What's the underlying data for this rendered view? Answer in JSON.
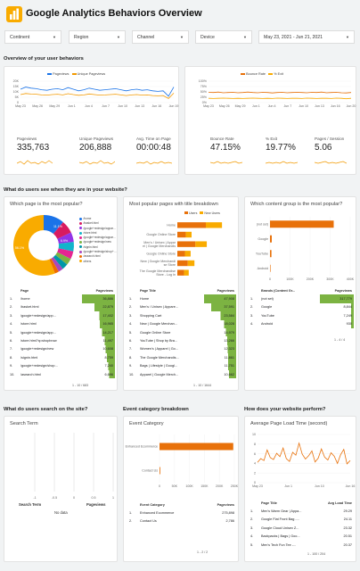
{
  "header": {
    "title": "Google Analytics Behaviors Overview",
    "logo": "bar-chart-logo"
  },
  "filters": [
    {
      "label": "Continent"
    },
    {
      "label": "Region"
    },
    {
      "label": "Channel"
    },
    {
      "label": "Device"
    },
    {
      "label": "May 23, 2021 - Jun 21, 2021"
    }
  ],
  "sections": {
    "overview": "Overview of your user behaviors",
    "pages": "What do users see when they are in your website?",
    "search": "What do users search on the site?",
    "events": "Event category breakdown",
    "perform": "How does your website perform?"
  },
  "colors": {
    "blue": "#1a73e8",
    "orange": "#f29900",
    "green_bar": "#7cb342",
    "orange_bar": "#e8710a"
  },
  "overview_left": {
    "legend": [
      "Pageviews",
      "Unique Pageviews"
    ],
    "metrics": [
      {
        "label": "Pageviews",
        "value": "335,763"
      },
      {
        "label": "Unique Pageviews",
        "value": "206,888"
      },
      {
        "label": "Avg. Time on Page",
        "value": "00:00:48"
      }
    ]
  },
  "overview_right": {
    "legend": [
      "Bounce Rate",
      "% Exit"
    ],
    "metrics": [
      {
        "label": "Bounce Rate",
        "value": "47.15%"
      },
      {
        "label": "% Exit",
        "value": "19.77%"
      },
      {
        "label": "Pages / Session",
        "value": "5.06"
      }
    ]
  },
  "popular_page": {
    "title": "Which page is the most popular?",
    "legend": [
      "/home",
      "/basket.html",
      "/google+redesign/apparel/mens",
      "/store.html",
      "/google+redesign/apparel/mens",
      "/google+redesign/new",
      "/signin.html",
      "/google+redesign/shop+by+...",
      "/asearch.html",
      "others"
    ],
    "table_headers": [
      "Page",
      "Pageviews"
    ],
    "rows": [
      [
        "1.",
        "/home",
        "36,886"
      ],
      [
        "2.",
        "/basket.html",
        "22,879"
      ],
      [
        "3.",
        "/google+redesign/app...",
        "17,402"
      ],
      [
        "4.",
        "/store.html",
        "16,965"
      ],
      [
        "5.",
        "/google+redesign/app...",
        "14,217"
      ],
      [
        "6.",
        "/store.html?q=shopbrow",
        "11,497"
      ],
      [
        "7.",
        "/google+redesign/new",
        "10,608"
      ],
      [
        "8.",
        "/signin.html",
        "8,759"
      ],
      [
        "9.",
        "/google+redesign/shop...",
        "7,240"
      ],
      [
        "10.",
        "/asearch.html",
        "6,696"
      ]
    ],
    "pager": "1 - 10 / 683"
  },
  "page_title": {
    "title": "Most popular pages with title breakdown",
    "table_headers": [
      "Page Title",
      "Pageviews"
    ],
    "rows": [
      [
        "1.",
        "Home",
        "47,908"
      ],
      [
        "2.",
        "Men's / Unisex | Appare...",
        "37,591"
      ],
      [
        "3.",
        "Shopping Cart",
        "23,584"
      ],
      [
        "4.",
        "New | Google Merchan...",
        "18,028"
      ],
      [
        "5.",
        "Google Online Store",
        "14,979"
      ],
      [
        "6.",
        "YouTube | Shop by Bra...",
        "13,266"
      ],
      [
        "7.",
        "Women's | Apparel | Go...",
        "12,323"
      ],
      [
        "8.",
        "The Google Merchandis...",
        "11,861"
      ],
      [
        "9.",
        "Bags | Lifestyle | Googl...",
        "11,751"
      ],
      [
        "10.",
        "Apparel | Google Merch...",
        "10,662"
      ]
    ],
    "pager": "1 - 10 / 1644"
  },
  "content_group": {
    "title": "Which content group is the most popular?",
    "table_headers": [
      "Brands (Content Gr...",
      "Pageviews"
    ],
    "rows": [
      [
        "1.",
        "(not set)",
        "317,779"
      ],
      [
        "2.",
        "Google",
        "8,844"
      ],
      [
        "3.",
        "YouTube",
        "7,249"
      ],
      [
        "4.",
        "Android",
        "930"
      ]
    ],
    "pager": "1 - 4 / 4"
  },
  "search_term": {
    "title": "Search Term",
    "table_headers": [
      "Search Term",
      "Pageviews"
    ],
    "no_data": "No data"
  },
  "event_category": {
    "title": "Event Category",
    "table_headers": [
      "Event Category",
      "Pageviews"
    ],
    "rows": [
      [
        "1.",
        "Enhanced Ecommerce",
        "275,898"
      ],
      [
        "2.",
        "Contact Us",
        "2,786"
      ]
    ],
    "pager": "1 - 2 / 2"
  },
  "load_time": {
    "title": "Average Page Load Time (second)",
    "table_headers": [
      "Page Title",
      "Avg Load Time"
    ],
    "rows": [
      [
        "1.",
        "Men's Warm Gear | Appa...",
        "29.29"
      ],
      [
        "2.",
        "Google Flat Front Bag -...",
        "24.11"
      ],
      [
        "3.",
        "Google Cloud Unisex Z...",
        "23.32"
      ],
      [
        "4.",
        "Backpacks | Bags | Goo...",
        "20.51"
      ],
      [
        "5.",
        "Men's Tech Fun Tee -...",
        "20.37"
      ]
    ],
    "pager": "1 - 100 / 204"
  },
  "chart_data": [
    {
      "type": "line",
      "x_ticks": [
        "May 23",
        "May 26",
        "May 29",
        "Jun 1",
        "Jun 4",
        "Jun 7",
        "Jun 10",
        "Jun 13",
        "Jun 16",
        "Jun 19"
      ],
      "ylim": [
        0,
        20000
      ],
      "y_ticks": [
        "0",
        "5K",
        "10K",
        "15K",
        "20K"
      ],
      "series": [
        {
          "name": "Pageviews",
          "values": [
            12500,
            14500,
            13500,
            13000,
            12000,
            11500,
            12500,
            13000,
            12000,
            14000,
            12500,
            11000,
            12000,
            13500,
            12500,
            11500,
            12000,
            12500,
            13000,
            12000,
            11000,
            12000,
            12500,
            11500,
            12000,
            11000,
            10500,
            11000,
            6000,
            14500
          ]
        },
        {
          "name": "Unique Pageviews",
          "values": [
            7500,
            8500,
            8000,
            7800,
            7200,
            7000,
            7500,
            7800,
            7200,
            8300,
            7500,
            6800,
            7200,
            8100,
            7500,
            7000,
            7200,
            7500,
            7800,
            7200,
            6600,
            7200,
            7500,
            7000,
            7200,
            6600,
            6300,
            6600,
            3800,
            8800
          ]
        }
      ]
    },
    {
      "type": "line",
      "x_ticks": [
        "May 23",
        "May 26",
        "May 29",
        "Jun 1",
        "Jun 4",
        "Jun 7",
        "Jun 10",
        "Jun 13",
        "Jun 16",
        "Jun 20"
      ],
      "ylim": [
        0,
        100
      ],
      "y_ticks": [
        "0%",
        "25%",
        "50%",
        "75%",
        "100%"
      ],
      "series": [
        {
          "name": "Bounce Rate",
          "values": [
            48,
            47,
            49,
            46,
            47,
            48,
            46,
            47,
            49,
            47,
            46,
            48,
            47,
            45,
            47,
            48,
            46,
            47,
            48,
            47,
            46,
            48,
            47,
            49,
            46,
            47,
            48,
            46,
            45,
            47
          ]
        },
        {
          "name": "% Exit",
          "values": [
            20,
            19,
            20,
            21,
            20,
            19,
            20,
            19,
            20,
            21,
            20,
            19,
            20,
            19,
            21,
            20,
            19,
            20,
            20,
            19,
            21,
            20,
            19,
            20,
            20,
            19,
            21,
            20,
            18,
            20
          ]
        }
      ]
    },
    {
      "type": "pie",
      "donut": true,
      "slices": [
        {
          "label": "/home",
          "value": 11.1,
          "color": "#1a73e8"
        },
        {
          "label": "/basket.html",
          "value": 6.9,
          "color": "#d81b60"
        },
        {
          "label": "/google+redesign/apparel/mens",
          "value": 5.2,
          "color": "#9334e6"
        },
        {
          "label": "/store.html",
          "value": 5.0,
          "color": "#12b5cb"
        },
        {
          "label": "/google+redesign/apparel/mens",
          "value": 4.2,
          "color": "#e52592"
        },
        {
          "label": "/google+redesign/new",
          "value": 3.5,
          "color": "#7cb342"
        },
        {
          "label": "/signin.html",
          "value": 3.2,
          "color": "#0097a7"
        },
        {
          "label": "/google+redesign/shop+by+...",
          "value": 2.6,
          "color": "#ab47bc"
        },
        {
          "label": "/asearch.html",
          "value": 2.2,
          "color": "#ef6c00"
        },
        {
          "label": "others",
          "value": 56.1,
          "color": "#f9ab00"
        }
      ],
      "data_labels": [
        "11.1%",
        "6.9%",
        "56.1%"
      ]
    },
    {
      "type": "bar",
      "orientation": "horizontal",
      "stacked": true,
      "categories": [
        "Home",
        "Google Online Store",
        "Men's / Unisex | Apparel | Google Merchandise Store",
        "Google Online Store",
        "New | Google Merchandise Store",
        "The Google Merchandise Store - Log In"
      ],
      "series": [
        {
          "name": "Users",
          "values": [
            30000,
            9000,
            19000,
            8000,
            11000,
            7000
          ]
        },
        {
          "name": "New Users",
          "values": [
            17000,
            6000,
            12000,
            6000,
            7000,
            5000
          ]
        }
      ],
      "xlim": [
        0,
        60000
      ]
    },
    {
      "type": "bar",
      "orientation": "horizontal",
      "categories": [
        "(not set)",
        "Google",
        "YouTube",
        "Android"
      ],
      "values": [
        317779,
        8844,
        7249,
        930
      ],
      "x_ticks": [
        "0",
        "100K",
        "200K",
        "300K",
        "400K"
      ],
      "xlim": [
        0,
        400000
      ]
    },
    {
      "type": "bar",
      "orientation": "horizontal",
      "categories": [
        "Enhanced Ecommerce",
        "Contact Us"
      ],
      "values": [
        275898,
        2786
      ],
      "x_ticks": [
        "0",
        "50K",
        "100K",
        "150K",
        "200K",
        "250K"
      ],
      "xlim": [
        0,
        280000
      ]
    },
    {
      "type": "line",
      "x_ticks": [
        "May 23",
        "Jun 1",
        "Jun 10",
        "Jun 16"
      ],
      "y_ticks": [
        "0",
        "2",
        "4",
        "6",
        "8",
        "10"
      ],
      "ylim": [
        0,
        10
      ],
      "series": [
        {
          "name": "Average Page Load Time",
          "values": [
            4.2,
            5.0,
            4.6,
            6.8,
            5.2,
            4.8,
            6.1,
            5.4,
            7.2,
            5.0,
            4.4,
            6.3,
            5.7,
            8.2,
            5.9,
            4.9,
            5.6,
            6.6,
            4.3,
            5.1,
            7.0,
            5.3,
            4.7,
            6.2,
            5.5,
            4.0,
            5.8,
            6.9,
            3.9,
            4.6
          ]
        }
      ]
    }
  ]
}
